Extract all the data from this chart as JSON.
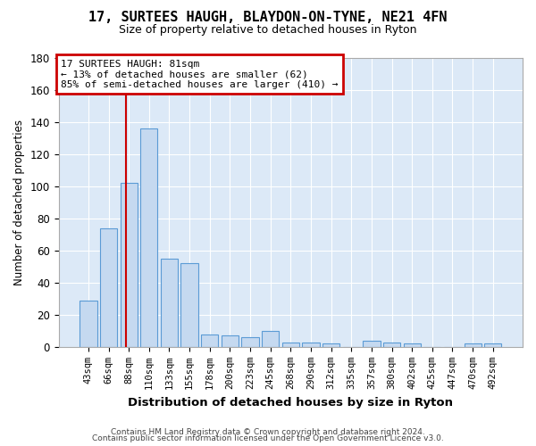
{
  "title": "17, SURTEES HAUGH, BLAYDON-ON-TYNE, NE21 4FN",
  "subtitle": "Size of property relative to detached houses in Ryton",
  "xlabel": "Distribution of detached houses by size in Ryton",
  "ylabel": "Number of detached properties",
  "categories": [
    "43sqm",
    "66sqm",
    "88sqm",
    "110sqm",
    "133sqm",
    "155sqm",
    "178sqm",
    "200sqm",
    "223sqm",
    "245sqm",
    "268sqm",
    "290sqm",
    "312sqm",
    "335sqm",
    "357sqm",
    "380sqm",
    "402sqm",
    "425sqm",
    "447sqm",
    "470sqm",
    "492sqm"
  ],
  "values": [
    29,
    74,
    102,
    136,
    55,
    52,
    8,
    7,
    6,
    10,
    3,
    3,
    2,
    0,
    4,
    3,
    2,
    0,
    0,
    2,
    2
  ],
  "bar_color": "#c5d9f0",
  "bar_edge_color": "#5b9bd5",
  "vline_x": 1.85,
  "vline_color": "#cc0000",
  "annotation_text": "17 SURTEES HAUGH: 81sqm\n← 13% of detached houses are smaller (62)\n85% of semi-detached houses are larger (410) →",
  "annotation_box_color": "#ffffff",
  "annotation_box_edge": "#cc0000",
  "ylim": [
    0,
    180
  ],
  "yticks": [
    0,
    20,
    40,
    60,
    80,
    100,
    120,
    140,
    160,
    180
  ],
  "footer_line1": "Contains HM Land Registry data © Crown copyright and database right 2024.",
  "footer_line2": "Contains public sector information licensed under the Open Government Licence v3.0.",
  "plot_bg_color": "#dce9f7",
  "fig_bg_color": "#ffffff",
  "grid_color": "#ffffff"
}
